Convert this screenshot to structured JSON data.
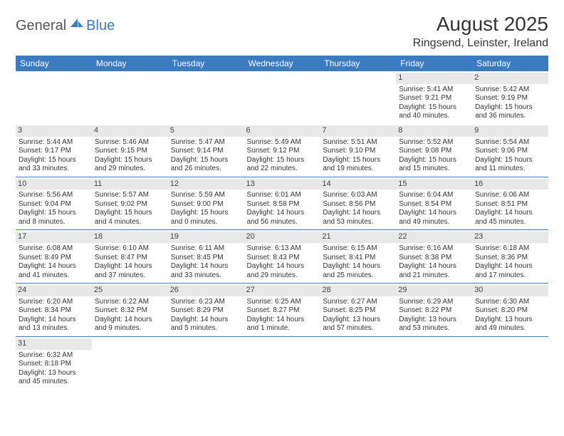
{
  "brand": {
    "part1": "General",
    "part2": "Blue"
  },
  "title": {
    "month": "August 2025",
    "location": "Ringsend, Leinster, Ireland"
  },
  "colors": {
    "header_bg": "#3b7bbf",
    "header_fg": "#ffffff",
    "daynum_bg": "#e8e8e8",
    "rule": "#3b7bbf"
  },
  "daysOfWeek": [
    "Sunday",
    "Monday",
    "Tuesday",
    "Wednesday",
    "Thursday",
    "Friday",
    "Saturday"
  ],
  "weeks": [
    [
      null,
      null,
      null,
      null,
      null,
      {
        "n": "1",
        "sunrise": "Sunrise: 5:41 AM",
        "sunset": "Sunset: 9:21 PM",
        "day1": "Daylight: 15 hours",
        "day2": "and 40 minutes."
      },
      {
        "n": "2",
        "sunrise": "Sunrise: 5:42 AM",
        "sunset": "Sunset: 9:19 PM",
        "day1": "Daylight: 15 hours",
        "day2": "and 36 minutes."
      }
    ],
    [
      {
        "n": "3",
        "sunrise": "Sunrise: 5:44 AM",
        "sunset": "Sunset: 9:17 PM",
        "day1": "Daylight: 15 hours",
        "day2": "and 33 minutes."
      },
      {
        "n": "4",
        "sunrise": "Sunrise: 5:46 AM",
        "sunset": "Sunset: 9:15 PM",
        "day1": "Daylight: 15 hours",
        "day2": "and 29 minutes."
      },
      {
        "n": "5",
        "sunrise": "Sunrise: 5:47 AM",
        "sunset": "Sunset: 9:14 PM",
        "day1": "Daylight: 15 hours",
        "day2": "and 26 minutes."
      },
      {
        "n": "6",
        "sunrise": "Sunrise: 5:49 AM",
        "sunset": "Sunset: 9:12 PM",
        "day1": "Daylight: 15 hours",
        "day2": "and 22 minutes."
      },
      {
        "n": "7",
        "sunrise": "Sunrise: 5:51 AM",
        "sunset": "Sunset: 9:10 PM",
        "day1": "Daylight: 15 hours",
        "day2": "and 19 minutes."
      },
      {
        "n": "8",
        "sunrise": "Sunrise: 5:52 AM",
        "sunset": "Sunset: 9:08 PM",
        "day1": "Daylight: 15 hours",
        "day2": "and 15 minutes."
      },
      {
        "n": "9",
        "sunrise": "Sunrise: 5:54 AM",
        "sunset": "Sunset: 9:06 PM",
        "day1": "Daylight: 15 hours",
        "day2": "and 11 minutes."
      }
    ],
    [
      {
        "n": "10",
        "sunrise": "Sunrise: 5:56 AM",
        "sunset": "Sunset: 9:04 PM",
        "day1": "Daylight: 15 hours",
        "day2": "and 8 minutes."
      },
      {
        "n": "11",
        "sunrise": "Sunrise: 5:57 AM",
        "sunset": "Sunset: 9:02 PM",
        "day1": "Daylight: 15 hours",
        "day2": "and 4 minutes."
      },
      {
        "n": "12",
        "sunrise": "Sunrise: 5:59 AM",
        "sunset": "Sunset: 9:00 PM",
        "day1": "Daylight: 15 hours",
        "day2": "and 0 minutes."
      },
      {
        "n": "13",
        "sunrise": "Sunrise: 6:01 AM",
        "sunset": "Sunset: 8:58 PM",
        "day1": "Daylight: 14 hours",
        "day2": "and 56 minutes."
      },
      {
        "n": "14",
        "sunrise": "Sunrise: 6:03 AM",
        "sunset": "Sunset: 8:56 PM",
        "day1": "Daylight: 14 hours",
        "day2": "and 53 minutes."
      },
      {
        "n": "15",
        "sunrise": "Sunrise: 6:04 AM",
        "sunset": "Sunset: 8:54 PM",
        "day1": "Daylight: 14 hours",
        "day2": "and 49 minutes."
      },
      {
        "n": "16",
        "sunrise": "Sunrise: 6:06 AM",
        "sunset": "Sunset: 8:51 PM",
        "day1": "Daylight: 14 hours",
        "day2": "and 45 minutes."
      }
    ],
    [
      {
        "n": "17",
        "sunrise": "Sunrise: 6:08 AM",
        "sunset": "Sunset: 8:49 PM",
        "day1": "Daylight: 14 hours",
        "day2": "and 41 minutes."
      },
      {
        "n": "18",
        "sunrise": "Sunrise: 6:10 AM",
        "sunset": "Sunset: 8:47 PM",
        "day1": "Daylight: 14 hours",
        "day2": "and 37 minutes."
      },
      {
        "n": "19",
        "sunrise": "Sunrise: 6:11 AM",
        "sunset": "Sunset: 8:45 PM",
        "day1": "Daylight: 14 hours",
        "day2": "and 33 minutes."
      },
      {
        "n": "20",
        "sunrise": "Sunrise: 6:13 AM",
        "sunset": "Sunset: 8:43 PM",
        "day1": "Daylight: 14 hours",
        "day2": "and 29 minutes."
      },
      {
        "n": "21",
        "sunrise": "Sunrise: 6:15 AM",
        "sunset": "Sunset: 8:41 PM",
        "day1": "Daylight: 14 hours",
        "day2": "and 25 minutes."
      },
      {
        "n": "22",
        "sunrise": "Sunrise: 6:16 AM",
        "sunset": "Sunset: 8:38 PM",
        "day1": "Daylight: 14 hours",
        "day2": "and 21 minutes."
      },
      {
        "n": "23",
        "sunrise": "Sunrise: 6:18 AM",
        "sunset": "Sunset: 8:36 PM",
        "day1": "Daylight: 14 hours",
        "day2": "and 17 minutes."
      }
    ],
    [
      {
        "n": "24",
        "sunrise": "Sunrise: 6:20 AM",
        "sunset": "Sunset: 8:34 PM",
        "day1": "Daylight: 14 hours",
        "day2": "and 13 minutes."
      },
      {
        "n": "25",
        "sunrise": "Sunrise: 6:22 AM",
        "sunset": "Sunset: 8:32 PM",
        "day1": "Daylight: 14 hours",
        "day2": "and 9 minutes."
      },
      {
        "n": "26",
        "sunrise": "Sunrise: 6:23 AM",
        "sunset": "Sunset: 8:29 PM",
        "day1": "Daylight: 14 hours",
        "day2": "and 5 minutes."
      },
      {
        "n": "27",
        "sunrise": "Sunrise: 6:25 AM",
        "sunset": "Sunset: 8:27 PM",
        "day1": "Daylight: 14 hours",
        "day2": "and 1 minute."
      },
      {
        "n": "28",
        "sunrise": "Sunrise: 6:27 AM",
        "sunset": "Sunset: 8:25 PM",
        "day1": "Daylight: 13 hours",
        "day2": "and 57 minutes."
      },
      {
        "n": "29",
        "sunrise": "Sunrise: 6:29 AM",
        "sunset": "Sunset: 8:22 PM",
        "day1": "Daylight: 13 hours",
        "day2": "and 53 minutes."
      },
      {
        "n": "30",
        "sunrise": "Sunrise: 6:30 AM",
        "sunset": "Sunset: 8:20 PM",
        "day1": "Daylight: 13 hours",
        "day2": "and 49 minutes."
      }
    ],
    [
      {
        "n": "31",
        "sunrise": "Sunrise: 6:32 AM",
        "sunset": "Sunset: 8:18 PM",
        "day1": "Daylight: 13 hours",
        "day2": "and 45 minutes."
      },
      null,
      null,
      null,
      null,
      null,
      null
    ]
  ]
}
